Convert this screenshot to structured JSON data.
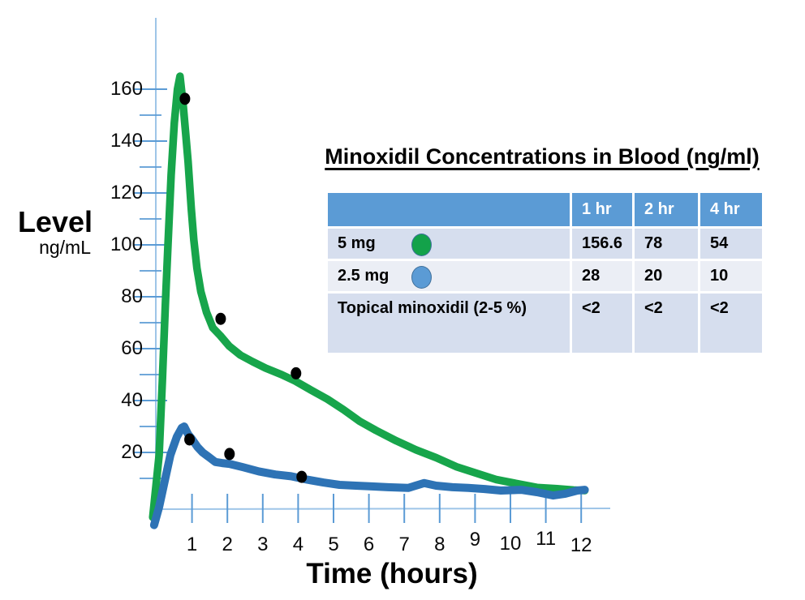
{
  "colors": {
    "green_series": "#17a54b",
    "blue_series": "#2e73b5",
    "axis_line": "#9ec5e8",
    "tick": "#5b9bd5",
    "marker": "#000000",
    "table_header_bg": "#5b9bd5",
    "table_row_dark": "#d6deee",
    "table_row_light": "#ebeef5",
    "legend_dot_green": "#13a24a",
    "legend_dot_blue": "#5b9bd5",
    "text": "#000000"
  },
  "chart_data": {
    "type": "line",
    "title": "",
    "xlabel": "Time (hours)",
    "ylabel": "Level",
    "ylabel_unit": "ng/mL",
    "xlim": [
      0,
      12.2
    ],
    "ylim": [
      0,
      170
    ],
    "grid": false,
    "legend_position": "in-table",
    "x_ticks": [
      1,
      2,
      3,
      4,
      5,
      6,
      7,
      8,
      9,
      10,
      11,
      12
    ],
    "y_ticks_major": [
      20,
      40,
      60,
      80,
      100,
      120,
      140,
      160
    ],
    "y_ticks_minor": [
      10,
      30,
      50,
      70,
      90,
      110,
      130,
      150
    ],
    "series": [
      {
        "name": "5 mg",
        "color": "#17a54b",
        "stroke_width": 9.5,
        "points": [
          [
            -0.11,
            -5
          ],
          [
            0.07,
            19
          ],
          [
            0.16,
            47
          ],
          [
            0.25,
            78
          ],
          [
            0.32,
            100
          ],
          [
            0.41,
            127
          ],
          [
            0.5,
            147
          ],
          [
            0.59,
            160
          ],
          [
            0.66,
            165
          ],
          [
            0.75,
            154
          ],
          [
            0.82,
            143
          ],
          [
            0.89,
            132
          ],
          [
            0.98,
            114
          ],
          [
            1.05,
            102
          ],
          [
            1.14,
            91
          ],
          [
            1.25,
            82
          ],
          [
            1.41,
            74
          ],
          [
            1.59,
            68
          ],
          [
            1.8,
            65
          ],
          [
            2.05,
            61
          ],
          [
            2.37,
            57.5
          ],
          [
            2.71,
            55
          ],
          [
            3.08,
            52.5
          ],
          [
            3.53,
            50
          ],
          [
            3.92,
            47.5
          ],
          [
            4.37,
            44
          ],
          [
            4.83,
            40.5
          ],
          [
            5.28,
            36.5
          ],
          [
            5.74,
            32
          ],
          [
            6.2,
            28.5
          ],
          [
            6.77,
            24.5
          ],
          [
            7.33,
            21
          ],
          [
            7.9,
            18
          ],
          [
            8.47,
            14.5
          ],
          [
            9.04,
            12
          ],
          [
            9.61,
            9.5
          ],
          [
            10.18,
            8
          ],
          [
            10.75,
            6.5
          ],
          [
            11.32,
            6
          ],
          [
            11.78,
            5.5
          ],
          [
            12.1,
            5.3
          ]
        ],
        "markers": [
          [
            0.8,
            156.3
          ],
          [
            1.81,
            71.5
          ],
          [
            3.94,
            50.5
          ]
        ]
      },
      {
        "name": "2.5 mg",
        "color": "#2e73b5",
        "stroke_width": 10,
        "points": [
          [
            -0.07,
            -8
          ],
          [
            0.07,
            -1
          ],
          [
            0.23,
            9
          ],
          [
            0.39,
            19
          ],
          [
            0.57,
            26
          ],
          [
            0.71,
            29.5
          ],
          [
            0.78,
            30
          ],
          [
            0.89,
            27
          ],
          [
            0.98,
            25.5
          ],
          [
            1.16,
            22
          ],
          [
            1.3,
            20
          ],
          [
            1.45,
            18.5
          ],
          [
            1.66,
            16.3
          ],
          [
            1.85,
            15.9
          ],
          [
            2.06,
            15.6
          ],
          [
            2.44,
            14.3
          ],
          [
            2.89,
            12.7
          ],
          [
            3.35,
            11.5
          ],
          [
            3.8,
            10.8
          ],
          [
            4.26,
            9.5
          ],
          [
            4.71,
            8.4
          ],
          [
            5.17,
            7.5
          ],
          [
            5.63,
            7.2
          ],
          [
            6.08,
            6.9
          ],
          [
            6.54,
            6.6
          ],
          [
            7.11,
            6.3
          ],
          [
            7.56,
            8.2
          ],
          [
            7.9,
            7.2
          ],
          [
            8.36,
            6.6
          ],
          [
            8.81,
            6.3
          ],
          [
            9.27,
            5.9
          ],
          [
            9.73,
            5.3
          ],
          [
            10.3,
            5.6
          ],
          [
            10.75,
            4.7
          ],
          [
            11.21,
            3.4
          ],
          [
            11.55,
            4.1
          ],
          [
            11.89,
            5.3
          ],
          [
            12.1,
            5.6
          ]
        ],
        "markers": [
          [
            0.93,
            25
          ],
          [
            2.06,
            19.4
          ],
          [
            4.1,
            10.6
          ]
        ]
      }
    ]
  },
  "table": {
    "title": "Minoxidil Concentrations in Blood (ng/ml)",
    "columns": [
      "",
      "1 hr",
      "2 hr",
      "4 hr"
    ],
    "rows": [
      {
        "id": "5mg",
        "label": "5 mg",
        "dot_color": "#13a24a",
        "values": [
          "156.6",
          "78",
          "54"
        ]
      },
      {
        "id": "2.5mg",
        "label": "2.5 mg",
        "dot_color": "#5b9bd5",
        "values": [
          "28",
          "20",
          "10"
        ]
      },
      {
        "id": "topical",
        "label": "Topical minoxidil (2-5 %)",
        "dot_color": null,
        "values": [
          "<2",
          "<2",
          "<2"
        ]
      }
    ]
  }
}
